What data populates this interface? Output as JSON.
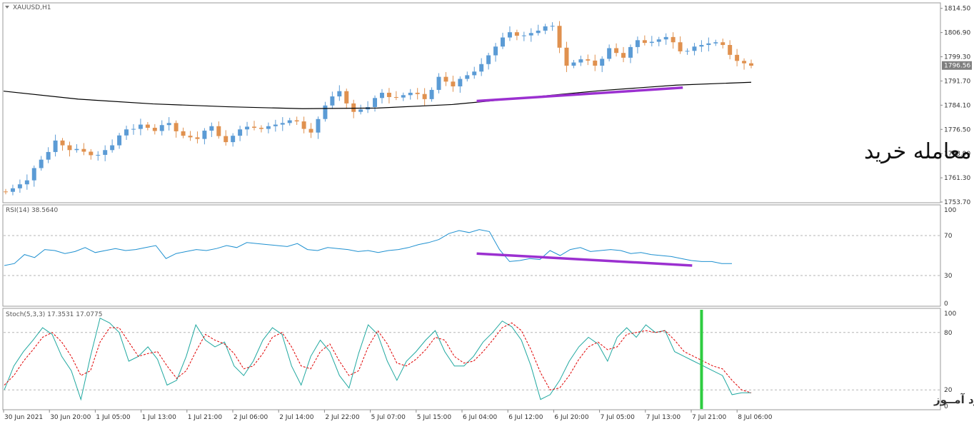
{
  "header": {
    "symbol": "XAUUSD,H1",
    "rsi_label": "RSI(14) 38.5640",
    "stoch_label": "Stoch(5,3,3) 17.3531 17.0775"
  },
  "annotations": {
    "trade_text": "معامله خرید",
    "watermark": "انتشار در وبسایت ســود آمــوز"
  },
  "colors": {
    "bull": "#5b9bd5",
    "bear": "#e0914f",
    "ma": "#000000",
    "rsi": "#1e90d0",
    "stoch_main": "#20a8a0",
    "stoch_signal": "#e00000",
    "divergence": "#9b30d0",
    "signal_line": "#2ecc40",
    "price_tag": "#7f7f7f"
  },
  "chart_data": [
    {
      "type": "candlestick",
      "title": "XAUUSD,H1",
      "ylim": [
        1753.7,
        1816.0
      ],
      "y_ticks": [
        1814.5,
        1806.9,
        1799.3,
        1791.7,
        1784.1,
        1776.5,
        1768.9,
        1761.3,
        1753.7
      ],
      "y_tick_labels": [
        "1814.50",
        "1806.90",
        "1799.30",
        "1791.70",
        "1784.10",
        "1776.50",
        "1768.90",
        "1761.30",
        "1753.70"
      ],
      "current_price": 1796.56,
      "current_price_label": "1796.56",
      "x_labels": [
        "30 Jun 2021",
        "30 Jun 20:00",
        "1 Jul 05:00",
        "1 Jul 13:00",
        "1 Jul 21:00",
        "2 Jul 06:00",
        "2 Jul 14:00",
        "2 Jul 22:00",
        "5 Jul 07:00",
        "5 Jul 15:00",
        "6 Jul 04:00",
        "6 Jul 12:00",
        "6 Jul 20:00",
        "7 Jul 05:00",
        "7 Jul 13:00",
        "7 Jul 21:00",
        "8 Jul 06:00"
      ],
      "close_path": [
        1758.0,
        1760.5,
        1767.0,
        1773.0,
        1770.0,
        1769.5,
        1768.5,
        1771.5,
        1776.5,
        1778.0,
        1776.0,
        1778.5,
        1774.5,
        1773.5,
        1777.5,
        1772.5,
        1776.5,
        1777.0,
        1777.5,
        1778.5,
        1779.0,
        1775.5,
        1784.0,
        1788.5,
        1782.0,
        1783.5,
        1788.0,
        1786.5,
        1788.0,
        1786.0,
        1793.0,
        1790.0,
        1793.5,
        1797.0,
        1802.5,
        1807.0,
        1806.0,
        1807.5,
        1809.0,
        1796.5,
        1798.5,
        1796.5,
        1802.0,
        1799.0,
        1804.5,
        1804.0,
        1805.5,
        1801.0,
        1802.5,
        1803.5,
        1803.0,
        1798.0,
        1796.5
      ],
      "moving_average": [
        {
          "t": 0,
          "v": 1788.5
        },
        {
          "t": 0.1,
          "v": 1786.0
        },
        {
          "t": 0.2,
          "v": 1784.5
        },
        {
          "t": 0.3,
          "v": 1783.6
        },
        {
          "t": 0.4,
          "v": 1783.0
        },
        {
          "t": 0.5,
          "v": 1783.2
        },
        {
          "t": 0.6,
          "v": 1784.3
        },
        {
          "t": 0.7,
          "v": 1786.5
        },
        {
          "t": 0.8,
          "v": 1788.7
        },
        {
          "t": 0.9,
          "v": 1790.4
        },
        {
          "t": 1.0,
          "v": 1791.3
        }
      ],
      "divergence_line": [
        {
          "t": 0.505,
          "v": 1785.4
        },
        {
          "t": 0.725,
          "v": 1789.6
        }
      ],
      "annotation_position": "right"
    },
    {
      "type": "line",
      "title": "RSI(14) 38.5640",
      "ylim": [
        0,
        100
      ],
      "y_ticks": [
        100,
        70,
        30,
        0
      ],
      "y_tick_labels": [
        "100",
        "70",
        "30",
        "0"
      ],
      "levels": [
        70,
        30
      ],
      "series": [
        {
          "values": [
            40,
            42,
            51,
            48,
            56,
            55,
            52,
            54,
            58,
            53,
            55,
            57,
            55,
            56,
            58,
            60,
            47,
            52,
            54,
            56,
            55,
            57,
            60,
            58,
            63,
            62,
            61,
            60,
            59,
            62,
            56,
            55,
            58,
            57,
            56,
            54,
            55,
            53,
            55,
            56,
            58,
            61,
            63,
            66,
            72,
            75,
            73,
            76,
            74,
            56,
            44,
            45,
            47,
            46,
            55,
            50,
            56,
            58,
            54,
            55,
            56,
            55,
            52,
            53,
            51,
            50,
            49,
            47,
            45,
            44,
            44,
            42,
            42
          ]
        }
      ],
      "divergence_line": [
        {
          "t": 0.505,
          "v": 52
        },
        {
          "t": 0.735,
          "v": 40
        }
      ]
    },
    {
      "type": "line",
      "title": "Stoch(5,3,3) 17.3531 17.0775",
      "ylim": [
        0,
        100
      ],
      "y_ticks": [
        100,
        80,
        20,
        0
      ],
      "y_tick_labels": [
        "100",
        "80",
        "20",
        "0"
      ],
      "levels": [
        80,
        20
      ],
      "series": [
        {
          "values": [
            20,
            45,
            60,
            72,
            85,
            78,
            55,
            40,
            10,
            55,
            95,
            90,
            80,
            50,
            55,
            65,
            52,
            25,
            30,
            55,
            88,
            72,
            65,
            70,
            45,
            35,
            50,
            72,
            85,
            78,
            45,
            25,
            55,
            72,
            60,
            35,
            22,
            58,
            88,
            78,
            50,
            30,
            50,
            60,
            72,
            82,
            60,
            45,
            45,
            55,
            70,
            80,
            92,
            86,
            72,
            45,
            10,
            15,
            30,
            50,
            65,
            75,
            68,
            50,
            75,
            85,
            75,
            88,
            80,
            82,
            60,
            55,
            50,
            45,
            40,
            35,
            15,
            17,
            17
          ]
        },
        {
          "values": [
            25,
            35,
            50,
            62,
            75,
            80,
            70,
            55,
            35,
            40,
            70,
            85,
            85,
            70,
            55,
            58,
            60,
            45,
            32,
            40,
            60,
            78,
            72,
            68,
            58,
            42,
            45,
            58,
            75,
            80,
            65,
            45,
            42,
            60,
            68,
            50,
            35,
            40,
            65,
            82,
            68,
            48,
            45,
            52,
            62,
            75,
            72,
            55,
            48,
            50,
            60,
            72,
            85,
            90,
            82,
            62,
            38,
            20,
            22,
            35,
            52,
            65,
            70,
            62,
            65,
            78,
            80,
            82,
            80,
            82,
            72,
            60,
            55,
            50,
            45,
            42,
            30,
            20,
            17
          ]
        }
      ],
      "signal_marker": {
        "t": 0.745
      }
    }
  ]
}
